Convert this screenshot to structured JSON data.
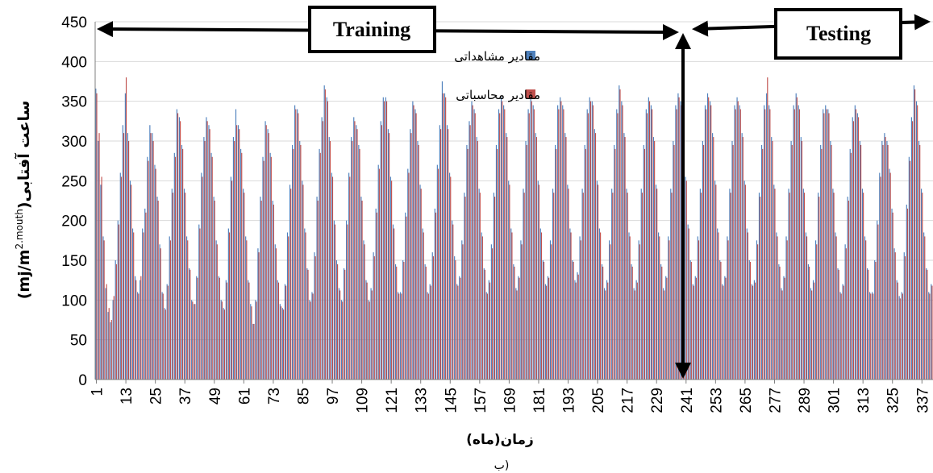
{
  "chart_data": {
    "type": "bar",
    "ylabel": "ساعت آفتابی",
    "ylabel_unit_prefix": "(mj/m",
    "ylabel_unit_sup": "2.mouth",
    "ylabel_unit_suffix": ")",
    "xlabel": "زمان(ماه)",
    "caption": "ب)",
    "ylim": [
      0,
      450
    ],
    "yticks": [
      "0",
      "50",
      "100",
      "150",
      "200",
      "250",
      "300",
      "350",
      "400",
      "450"
    ],
    "xticks": [
      "1",
      "13",
      "25",
      "37",
      "49",
      "61",
      "73",
      "85",
      "97",
      "109",
      "121",
      "133",
      "145",
      "157",
      "169",
      "181",
      "193",
      "205",
      "217",
      "229",
      "241",
      "253",
      "265",
      "277",
      "289",
      "301",
      "313",
      "325",
      "337"
    ],
    "n_months": 341,
    "legend_position": "top-center",
    "series": [
      {
        "name": "مقادیر مشاهداتی",
        "color": "#4f81bd",
        "values": [
          366,
          300,
          245,
          180,
          115,
          85,
          72,
          100,
          150,
          200,
          260,
          320,
          360,
          310,
          250,
          190,
          130,
          110,
          125,
          190,
          215,
          280,
          320,
          310,
          270,
          230,
          170,
          110,
          90,
          120,
          180,
          240,
          285,
          340,
          330,
          295,
          240,
          180,
          140,
          100,
          95,
          130,
          195,
          260,
          305,
          330,
          320,
          285,
          230,
          175,
          130,
          100,
          90,
          125,
          190,
          255,
          305,
          340,
          320,
          290,
          240,
          180,
          125,
          95,
          70,
          100,
          165,
          230,
          280,
          325,
          315,
          285,
          225,
          170,
          125,
          95,
          90,
          120,
          185,
          245,
          295,
          345,
          340,
          300,
          250,
          190,
          140,
          100,
          110,
          160,
          230,
          290,
          330,
          370,
          355,
          305,
          260,
          200,
          150,
          115,
          100,
          140,
          200,
          260,
          305,
          330,
          320,
          295,
          230,
          175,
          125,
          100,
          115,
          160,
          215,
          270,
          325,
          355,
          355,
          315,
          255,
          195,
          145,
          110,
          110,
          150,
          210,
          265,
          315,
          350,
          340,
          300,
          245,
          190,
          145,
          110,
          120,
          160,
          215,
          270,
          320,
          375,
          360,
          320,
          260,
          200,
          155,
          120,
          130,
          175,
          235,
          295,
          325,
          350,
          340,
          305,
          240,
          185,
          140,
          110,
          125,
          170,
          235,
          295,
          340,
          355,
          345,
          310,
          250,
          190,
          145,
          115,
          130,
          175,
          240,
          300,
          340,
          355,
          345,
          310,
          250,
          190,
          150,
          120,
          130,
          175,
          240,
          295,
          345,
          355,
          345,
          310,
          245,
          190,
          150,
          125,
          135,
          180,
          240,
          295,
          340,
          355,
          350,
          315,
          250,
          190,
          145,
          115,
          125,
          175,
          240,
          295,
          340,
          370,
          350,
          310,
          240,
          185,
          145,
          115,
          125,
          175,
          240,
          295,
          340,
          355,
          345,
          305,
          245,
          185,
          145,
          115,
          130,
          180,
          240,
          300,
          345,
          360,
          350,
          315,
          255,
          195,
          150,
          120,
          130,
          180,
          240,
          300,
          345,
          360,
          350,
          310,
          250,
          190,
          150,
          120,
          130,
          180,
          240,
          300,
          345,
          355,
          345,
          310,
          250,
          190,
          150,
          120,
          125,
          175,
          235,
          295,
          345,
          360,
          345,
          305,
          245,
          185,
          145,
          115,
          130,
          180,
          240,
          300,
          345,
          360,
          345,
          305,
          240,
          185,
          145,
          115,
          125,
          175,
          235,
          295,
          340,
          345,
          340,
          300,
          240,
          185,
          140,
          110,
          120,
          170,
          230,
          290,
          330,
          345,
          335,
          300,
          240,
          180,
          140,
          110,
          110,
          150,
          200,
          260,
          300,
          310,
          300,
          265,
          215,
          165,
          125,
          105,
          110,
          160,
          220,
          280,
          330,
          370,
          350,
          300,
          240,
          185,
          140,
          110,
          120,
          160,
          230,
          270
        ]
      },
      {
        "name": "مقادیر محاسباتی",
        "color": "#c0504d",
        "values": [
          360,
          310,
          255,
          175,
          120,
          90,
          75,
          105,
          145,
          195,
          255,
          310,
          380,
          300,
          245,
          185,
          125,
          108,
          130,
          185,
          210,
          275,
          310,
          300,
          265,
          225,
          165,
          108,
          88,
          118,
          175,
          235,
          280,
          335,
          325,
          290,
          235,
          175,
          138,
          98,
          95,
          128,
          190,
          255,
          300,
          325,
          315,
          280,
          225,
          170,
          128,
          98,
          88,
          122,
          185,
          250,
          300,
          320,
          315,
          285,
          235,
          175,
          122,
          92,
          70,
          98,
          160,
          225,
          275,
          320,
          310,
          280,
          220,
          165,
          122,
          92,
          88,
          118,
          180,
          240,
          290,
          340,
          335,
          295,
          245,
          185,
          138,
          98,
          108,
          155,
          225,
          285,
          325,
          365,
          350,
          300,
          255,
          195,
          145,
          112,
          98,
          138,
          195,
          255,
          300,
          325,
          315,
          290,
          225,
          170,
          122,
          98,
          112,
          155,
          210,
          265,
          320,
          350,
          350,
          310,
          250,
          190,
          142,
          108,
          108,
          148,
          205,
          260,
          310,
          345,
          335,
          295,
          240,
          185,
          142,
          108,
          118,
          155,
          210,
          265,
          315,
          360,
          355,
          315,
          255,
          195,
          150,
          118,
          128,
          170,
          230,
          290,
          320,
          345,
          335,
          300,
          235,
          180,
          138,
          108,
          122,
          165,
          230,
          290,
          335,
          350,
          340,
          305,
          245,
          185,
          142,
          112,
          128,
          170,
          235,
          295,
          335,
          350,
          340,
          305,
          245,
          185,
          148,
          118,
          128,
          170,
          235,
          290,
          340,
          350,
          340,
          305,
          240,
          185,
          148,
          122,
          132,
          175,
          235,
          290,
          335,
          350,
          345,
          310,
          245,
          185,
          142,
          112,
          122,
          170,
          235,
          290,
          335,
          365,
          345,
          305,
          235,
          180,
          142,
          112,
          122,
          170,
          235,
          290,
          335,
          350,
          340,
          300,
          240,
          180,
          142,
          112,
          128,
          175,
          235,
          295,
          340,
          355,
          345,
          310,
          250,
          190,
          148,
          118,
          128,
          175,
          235,
          295,
          340,
          355,
          345,
          305,
          245,
          185,
          148,
          118,
          128,
          175,
          235,
          295,
          340,
          350,
          340,
          305,
          245,
          185,
          148,
          118,
          122,
          170,
          230,
          290,
          340,
          380,
          340,
          300,
          240,
          180,
          142,
          112,
          128,
          175,
          235,
          295,
          340,
          355,
          340,
          300,
          235,
          180,
          142,
          112,
          122,
          170,
          230,
          290,
          335,
          340,
          335,
          295,
          235,
          180,
          138,
          108,
          118,
          165,
          225,
          285,
          325,
          340,
          330,
          295,
          235,
          175,
          138,
          108,
          108,
          148,
          195,
          255,
          295,
          305,
          295,
          260,
          210,
          160,
          122,
          102,
          108,
          155,
          215,
          275,
          325,
          365,
          345,
          295,
          235,
          180,
          138,
          108,
          118,
          158,
          225,
          265
        ]
      }
    ],
    "annotations": {
      "training_label": "Training",
      "testing_label": "Testing"
    }
  }
}
